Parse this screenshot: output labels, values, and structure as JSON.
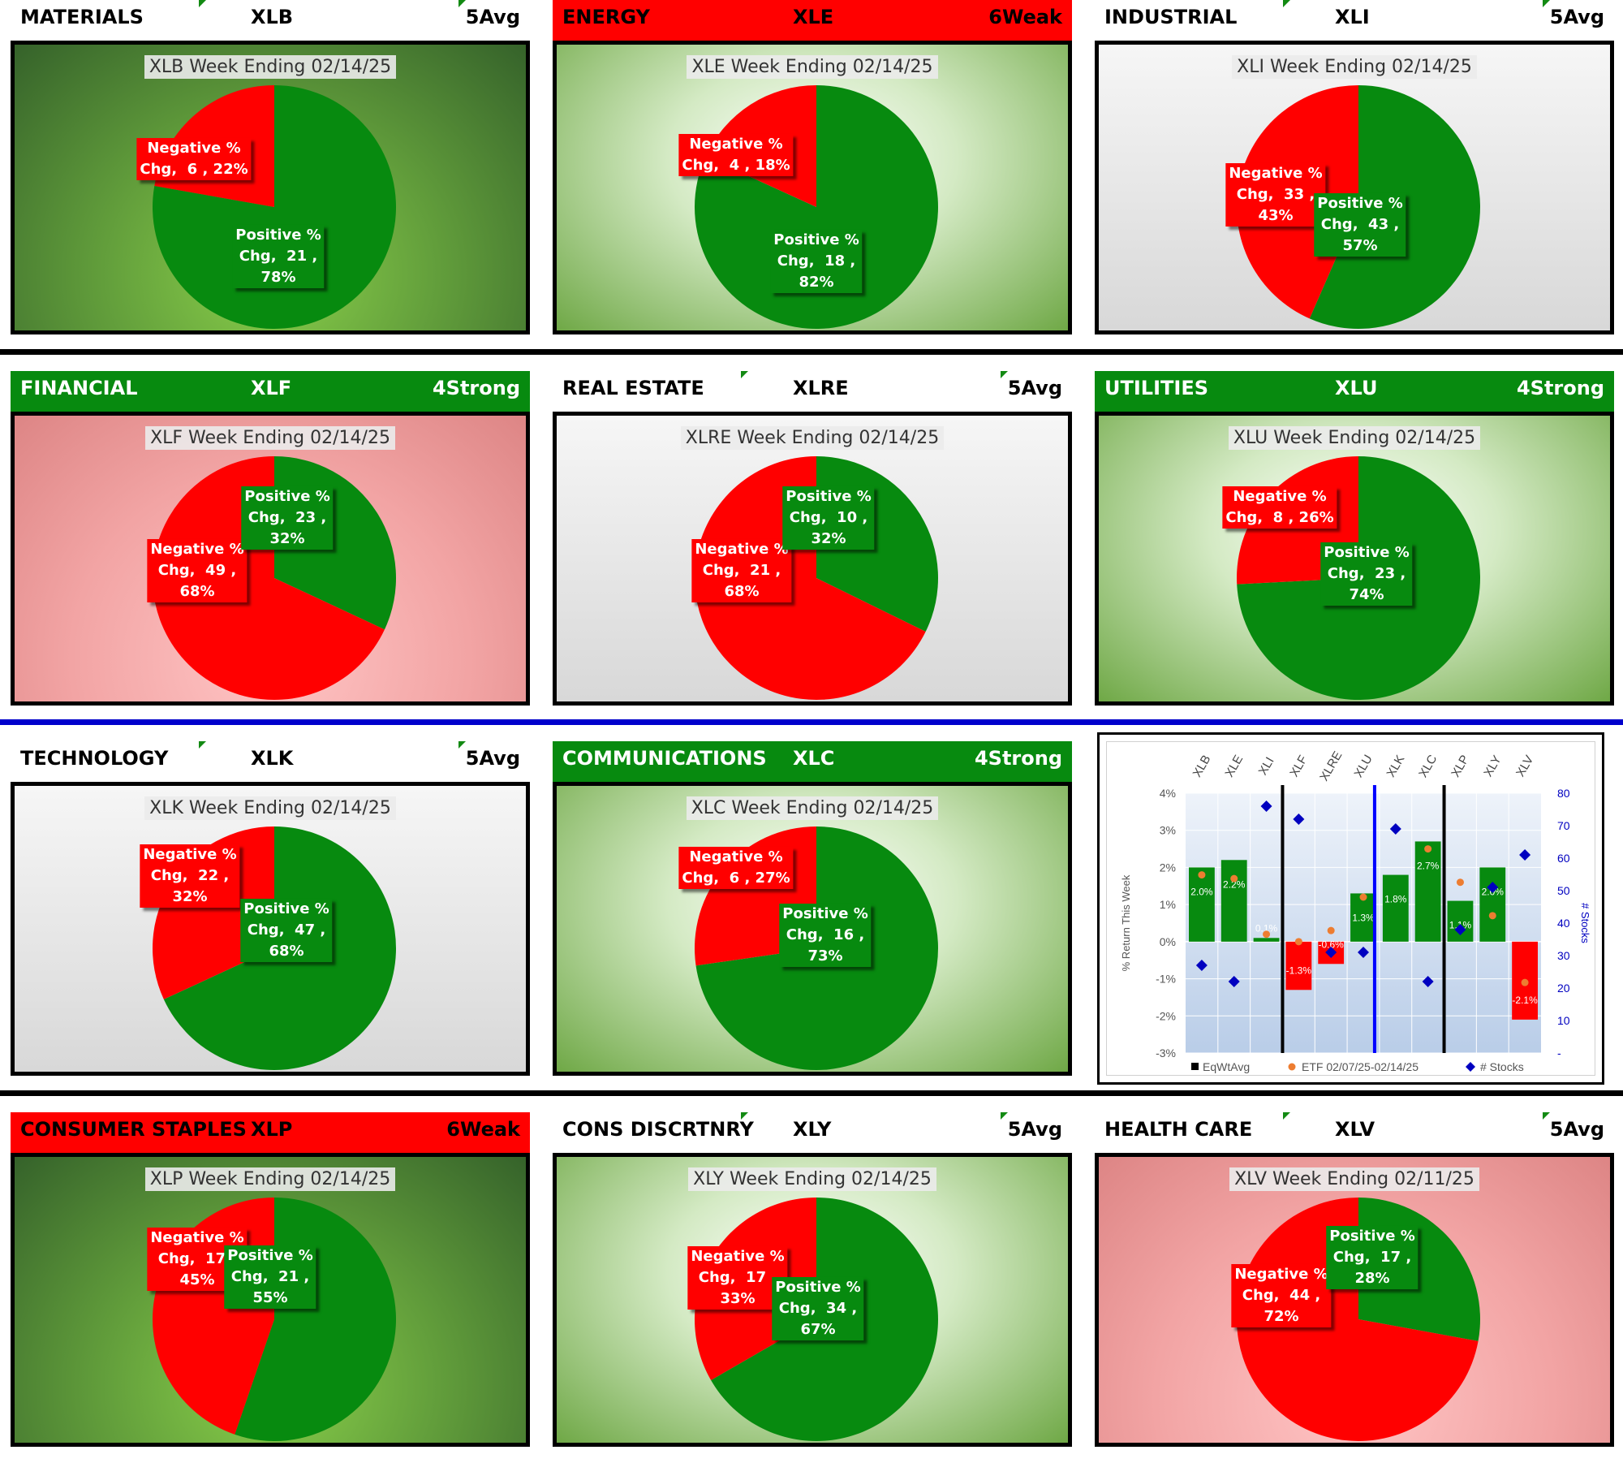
{
  "panels": [
    {
      "sector": "MATERIALS",
      "ticker": "XLB",
      "rating": "5Avg",
      "header_style": "plain",
      "bg": "dkgreen",
      "title": "XLB Week Ending 02/14/25",
      "negative": {
        "label": "Negative %\nChg,  6 , 22%",
        "count": 6,
        "pct": 22
      },
      "positive": {
        "label": "Positive %\nChg,  21 ,\n78%",
        "count": 21,
        "pct": 78
      }
    },
    {
      "sector": "ENERGY",
      "ticker": "XLE",
      "rating": "6Weak",
      "header_style": "red",
      "bg": "ltgreen",
      "title": "XLE Week Ending 02/14/25",
      "negative": {
        "label": "Negative %\nChg,  4 , 18%",
        "count": 4,
        "pct": 18
      },
      "positive": {
        "label": "Positive %\nChg,  18 ,\n82%",
        "count": 18,
        "pct": 82
      }
    },
    {
      "sector": "INDUSTRIAL",
      "ticker": "XLI",
      "rating": "5Avg",
      "header_style": "plain",
      "bg": "grey",
      "title": "XLI Week Ending 02/14/25",
      "negative": {
        "label": "Negative %\nChg,  33 ,\n43%",
        "count": 33,
        "pct": 43
      },
      "positive": {
        "label": "Positive %\nChg,  43 ,\n57%",
        "count": 43,
        "pct": 57
      }
    },
    {
      "sector": "FINANCIAL",
      "ticker": "XLF",
      "rating": "4Strong",
      "header_style": "green",
      "bg": "pink",
      "title": "XLF Week Ending 02/14/25",
      "negative": {
        "label": "Negative %\nChg,  49 ,\n68%",
        "count": 49,
        "pct": 68
      },
      "positive": {
        "label": "Positive %\nChg,  23 ,\n32%",
        "count": 23,
        "pct": 32
      }
    },
    {
      "sector": "REAL ESTATE",
      "ticker": "XLRE",
      "rating": "5Avg",
      "header_style": "plain",
      "bg": "grey",
      "title": "XLRE Week Ending 02/14/25",
      "negative": {
        "label": "Negative %\nChg,  21 ,\n68%",
        "count": 21,
        "pct": 68
      },
      "positive": {
        "label": "Positive %\nChg,  10 ,\n32%",
        "count": 10,
        "pct": 32
      }
    },
    {
      "sector": "UTILITIES",
      "ticker": "XLU",
      "rating": "4Strong",
      "header_style": "green",
      "bg": "ltgreen",
      "title": "XLU Week Ending 02/14/25",
      "negative": {
        "label": "Negative %\nChg,  8 , 26%",
        "count": 8,
        "pct": 26
      },
      "positive": {
        "label": "Positive %\nChg,  23 ,\n74%",
        "count": 23,
        "pct": 74
      }
    },
    {
      "sector": "TECHNOLOGY",
      "ticker": "XLK",
      "rating": "5Avg",
      "header_style": "plain",
      "bg": "grey",
      "title": "XLK Week Ending 02/14/25",
      "negative": {
        "label": "Negative %\nChg,  22 ,\n32%",
        "count": 22,
        "pct": 32
      },
      "positive": {
        "label": "Positive %\nChg,  47 ,\n68%",
        "count": 47,
        "pct": 68
      }
    },
    {
      "sector": "COMMUNICATIONS",
      "ticker": "XLC",
      "rating": "4Strong",
      "header_style": "green",
      "bg": "ltgreen",
      "title": "XLC Week Ending 02/14/25",
      "negative": {
        "label": "Negative %\nChg,  6 , 27%",
        "count": 6,
        "pct": 27
      },
      "positive": {
        "label": "Positive %\nChg,  16 ,\n73%",
        "count": 16,
        "pct": 73
      }
    },
    {
      "sector": "CONSUMER STAPLES",
      "ticker": "XLP",
      "rating": "6Weak",
      "header_style": "red",
      "bg": "dkgreen",
      "title": "XLP Week Ending 02/14/25",
      "negative": {
        "label": "Negative %\nChg,  17 ,\n45%",
        "count": 17,
        "pct": 45
      },
      "positive": {
        "label": "Positive %\nChg,  21 ,\n55%",
        "count": 21,
        "pct": 55
      }
    },
    {
      "sector": "CONS DISCRTNRY",
      "ticker": "XLY",
      "rating": "5Avg",
      "header_style": "plain",
      "bg": "ltgreen",
      "title": "XLY Week Ending 02/14/25",
      "negative": {
        "label": "Negative %\nChg,  17 ,\n33%",
        "count": 17,
        "pct": 33
      },
      "positive": {
        "label": "Positive %\nChg,  34 ,\n67%",
        "count": 34,
        "pct": 67
      }
    },
    {
      "sector": "HEALTH CARE",
      "ticker": "XLV",
      "rating": "5Avg",
      "header_style": "plain",
      "bg": "pink",
      "title": "XLV Week Ending 02/11/25",
      "negative": {
        "label": "Negative %\nChg,  44 ,\n72%",
        "count": 44,
        "pct": 72
      },
      "positive": {
        "label": "Positive %\nChg,  17 ,\n28%",
        "count": 17,
        "pct": 28
      }
    }
  ],
  "chart_data": [
    {
      "type": "pie",
      "title": "XLB Week Ending 02/14/25",
      "labels": [
        "Negative % Chg",
        "Positive % Chg"
      ],
      "values": [
        6,
        21
      ],
      "percents": [
        22,
        78
      ]
    },
    {
      "type": "pie",
      "title": "XLE Week Ending 02/14/25",
      "labels": [
        "Negative % Chg",
        "Positive % Chg"
      ],
      "values": [
        4,
        18
      ],
      "percents": [
        18,
        82
      ]
    },
    {
      "type": "pie",
      "title": "XLI Week Ending 02/14/25",
      "labels": [
        "Negative % Chg",
        "Positive % Chg"
      ],
      "values": [
        33,
        43
      ],
      "percents": [
        43,
        57
      ]
    },
    {
      "type": "pie",
      "title": "XLF Week Ending 02/14/25",
      "labels": [
        "Negative % Chg",
        "Positive % Chg"
      ],
      "values": [
        49,
        23
      ],
      "percents": [
        68,
        32
      ]
    },
    {
      "type": "pie",
      "title": "XLRE Week Ending 02/14/25",
      "labels": [
        "Negative % Chg",
        "Positive % Chg"
      ],
      "values": [
        21,
        10
      ],
      "percents": [
        68,
        32
      ]
    },
    {
      "type": "pie",
      "title": "XLU Week Ending 02/14/25",
      "labels": [
        "Negative % Chg",
        "Positive % Chg"
      ],
      "values": [
        8,
        23
      ],
      "percents": [
        26,
        74
      ]
    },
    {
      "type": "pie",
      "title": "XLK Week Ending 02/14/25",
      "labels": [
        "Negative % Chg",
        "Positive % Chg"
      ],
      "values": [
        22,
        47
      ],
      "percents": [
        32,
        68
      ]
    },
    {
      "type": "pie",
      "title": "XLC Week Ending 02/14/25",
      "labels": [
        "Negative % Chg",
        "Positive % Chg"
      ],
      "values": [
        6,
        16
      ],
      "percents": [
        27,
        73
      ]
    },
    {
      "type": "pie",
      "title": "XLP Week Ending 02/14/25",
      "labels": [
        "Negative % Chg",
        "Positive % Chg"
      ],
      "values": [
        17,
        21
      ],
      "percents": [
        45,
        55
      ]
    },
    {
      "type": "pie",
      "title": "XLY Week Ending 02/14/25",
      "labels": [
        "Negative % Chg",
        "Positive % Chg"
      ],
      "values": [
        17,
        34
      ],
      "percents": [
        33,
        67
      ]
    },
    {
      "type": "pie",
      "title": "XLV Week Ending 02/11/25",
      "labels": [
        "Negative % Chg",
        "Positive % Chg"
      ],
      "values": [
        44,
        17
      ],
      "percents": [
        72,
        28
      ]
    },
    {
      "type": "bar",
      "title": "",
      "categories": [
        "XLB",
        "XLE",
        "XLI",
        "XLF",
        "XLRE",
        "XLU",
        "XLK",
        "XLC",
        "XLP",
        "XLY",
        "XLV"
      ],
      "series": [
        {
          "name": "EqWtAvg",
          "kind": "bar",
          "values": [
            2.0,
            2.2,
            0.1,
            -1.3,
            -0.6,
            1.3,
            1.8,
            2.7,
            1.1,
            2.0,
            -2.1
          ],
          "labels": [
            "2.0%",
            "2.2%",
            "0.1%",
            "-1.3%",
            "-0.6%",
            "1.3%",
            "1.8%",
            "2.7%",
            "1.1%",
            "2.0%",
            "-2.1%"
          ]
        },
        {
          "name": "ETF 02/07/25-02/14/25",
          "kind": "dot",
          "values": [
            1.8,
            1.7,
            0.2,
            0.0,
            0.3,
            1.2,
            null,
            2.5,
            1.6,
            0.7,
            -1.1
          ]
        },
        {
          "name": "# Stocks",
          "kind": "diamond",
          "axis": "right",
          "values": [
            27,
            22,
            76,
            72,
            31,
            31,
            69,
            22,
            38,
            51,
            61
          ]
        }
      ],
      "ylabel": "% Return This Week",
      "y2label": "# Stocks",
      "ylim": [
        -3,
        4
      ],
      "y2lim": [
        0,
        80
      ],
      "y_ticks": [
        "-3%",
        "-2%",
        "-1%",
        "0%",
        "1%",
        "2%",
        "3%",
        "4%"
      ],
      "y2_ticks": [
        "-",
        "10",
        "20",
        "30",
        "40",
        "50",
        "60",
        "70",
        "80"
      ],
      "legend": [
        "EqWtAvg",
        "ETF 02/07/25-02/14/25",
        "# Stocks"
      ],
      "colors": {
        "positive": "#078a0f",
        "negative": "#ff0000",
        "etf": "#ed7d31",
        "stocks": "#0000c0",
        "divider_black": "#000000",
        "divider_blue": "#0000ff"
      }
    }
  ],
  "colors": {
    "positive": "#078a0f",
    "negative": "#ff0000",
    "separator_black": "#000000",
    "separator_blue": "#0000cc"
  }
}
